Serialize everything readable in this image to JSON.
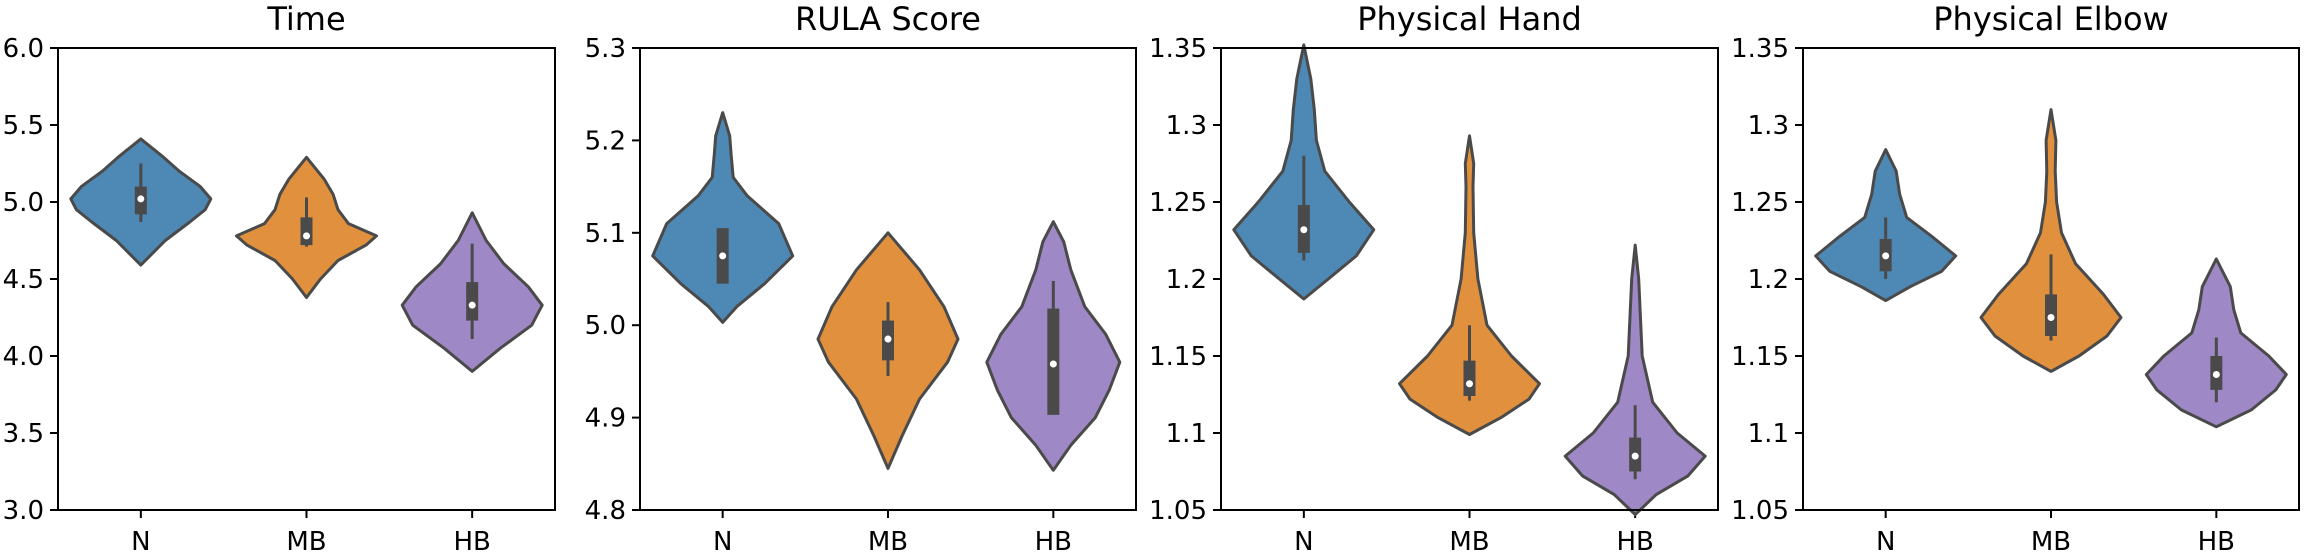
{
  "chart_data": [
    {
      "type": "violin",
      "title": "Time",
      "categories": [
        "N",
        "MB",
        "HB"
      ],
      "ylim": [
        3.0,
        6.0
      ],
      "yticks": [
        3.0,
        3.5,
        4.0,
        4.5,
        5.0,
        5.5,
        6.0
      ],
      "ytick_labels": [
        "3.0",
        "3.5",
        "4.0",
        "4.5",
        "5.0",
        "5.5",
        "6.0"
      ],
      "series": [
        {
          "name": "N",
          "color": "#4e88b4",
          "min": 4.59,
          "max": 5.41,
          "whisker_low": 4.87,
          "whisker_high": 5.25,
          "q1": 4.92,
          "median": 5.02,
          "q3": 5.1,
          "profile": [
            [
              4.59,
              0.0
            ],
            [
              4.75,
              0.35
            ],
            [
              4.87,
              0.7
            ],
            [
              4.95,
              0.92
            ],
            [
              5.02,
              1.0
            ],
            [
              5.1,
              0.85
            ],
            [
              5.2,
              0.55
            ],
            [
              5.3,
              0.3
            ],
            [
              5.41,
              0.0
            ]
          ]
        },
        {
          "name": "MB",
          "color": "#e1913e",
          "min": 4.38,
          "max": 5.29,
          "whisker_low": 4.71,
          "whisker_high": 5.03,
          "q1": 4.72,
          "median": 4.78,
          "q3": 4.9,
          "profile": [
            [
              4.38,
              0.0
            ],
            [
              4.5,
              0.2
            ],
            [
              4.62,
              0.45
            ],
            [
              4.72,
              0.85
            ],
            [
              4.78,
              1.0
            ],
            [
              4.86,
              0.6
            ],
            [
              4.95,
              0.45
            ],
            [
              5.05,
              0.38
            ],
            [
              5.15,
              0.25
            ],
            [
              5.29,
              0.0
            ]
          ]
        },
        {
          "name": "HB",
          "color": "#9e88c5",
          "min": 3.9,
          "max": 4.93,
          "whisker_low": 4.11,
          "whisker_high": 4.73,
          "q1": 4.23,
          "median": 4.33,
          "q3": 4.48,
          "profile": [
            [
              3.9,
              0.0
            ],
            [
              4.05,
              0.4
            ],
            [
              4.2,
              0.85
            ],
            [
              4.33,
              1.0
            ],
            [
              4.45,
              0.8
            ],
            [
              4.6,
              0.45
            ],
            [
              4.75,
              0.2
            ],
            [
              4.93,
              0.0
            ]
          ]
        }
      ]
    },
    {
      "type": "violin",
      "title": "RULA Score",
      "categories": [
        "N",
        "MB",
        "HB"
      ],
      "ylim": [
        4.8,
        5.3
      ],
      "yticks": [
        4.8,
        4.9,
        5.0,
        5.1,
        5.2,
        5.3
      ],
      "ytick_labels": [
        "4.8",
        "4.9",
        "5.0",
        "5.1",
        "5.2",
        "5.3"
      ],
      "series": [
        {
          "name": "N",
          "color": "#4e88b4",
          "min": 5.003,
          "max": 5.23,
          "whisker_low": 5.045,
          "whisker_high": 5.105,
          "q1": 5.045,
          "median": 5.075,
          "q3": 5.105,
          "profile": [
            [
              5.003,
              0.0
            ],
            [
              5.02,
              0.2
            ],
            [
              5.045,
              0.6
            ],
            [
              5.075,
              1.0
            ],
            [
              5.11,
              0.8
            ],
            [
              5.14,
              0.35
            ],
            [
              5.16,
              0.15
            ],
            [
              5.185,
              0.12
            ],
            [
              5.205,
              0.1
            ],
            [
              5.23,
              0.0
            ]
          ]
        },
        {
          "name": "MB",
          "color": "#e1913e",
          "min": 4.845,
          "max": 5.1,
          "whisker_low": 4.945,
          "whisker_high": 5.025,
          "q1": 4.962,
          "median": 4.985,
          "q3": 5.005,
          "profile": [
            [
              4.845,
              0.0
            ],
            [
              4.88,
              0.2
            ],
            [
              4.92,
              0.45
            ],
            [
              4.96,
              0.85
            ],
            [
              4.985,
              1.0
            ],
            [
              5.02,
              0.8
            ],
            [
              5.06,
              0.45
            ],
            [
              5.1,
              0.0
            ]
          ]
        },
        {
          "name": "HB",
          "color": "#9e88c5",
          "min": 4.843,
          "max": 5.112,
          "whisker_low": 4.903,
          "whisker_high": 5.048,
          "q1": 4.903,
          "median": 4.958,
          "q3": 5.018,
          "profile": [
            [
              4.843,
              0.0
            ],
            [
              4.87,
              0.25
            ],
            [
              4.9,
              0.6
            ],
            [
              4.93,
              0.8
            ],
            [
              4.96,
              0.95
            ],
            [
              4.99,
              0.75
            ],
            [
              5.02,
              0.45
            ],
            [
              5.06,
              0.25
            ],
            [
              5.09,
              0.15
            ],
            [
              5.112,
              0.0
            ]
          ]
        }
      ]
    },
    {
      "type": "violin",
      "title": "Physical Hand",
      "categories": [
        "N",
        "MB",
        "HB"
      ],
      "ylim": [
        1.05,
        1.35
      ],
      "yticks": [
        1.05,
        1.1,
        1.15,
        1.2,
        1.25,
        1.3,
        1.35
      ],
      "ytick_labels": [
        "1.05",
        "1.1",
        "1.15",
        "1.2",
        "1.25",
        "1.3",
        "1.35"
      ],
      "series": [
        {
          "name": "N",
          "color": "#4e88b4",
          "min": 1.187,
          "max": 1.352,
          "whisker_low": 1.212,
          "whisker_high": 1.28,
          "q1": 1.217,
          "median": 1.232,
          "q3": 1.248,
          "profile": [
            [
              1.187,
              0.0
            ],
            [
              1.2,
              0.35
            ],
            [
              1.215,
              0.75
            ],
            [
              1.232,
              1.0
            ],
            [
              1.25,
              0.65
            ],
            [
              1.27,
              0.3
            ],
            [
              1.29,
              0.18
            ],
            [
              1.31,
              0.15
            ],
            [
              1.33,
              0.1
            ],
            [
              1.352,
              0.0
            ]
          ]
        },
        {
          "name": "MB",
          "color": "#e1913e",
          "min": 1.099,
          "max": 1.293,
          "whisker_low": 1.121,
          "whisker_high": 1.17,
          "q1": 1.124,
          "median": 1.132,
          "q3": 1.147,
          "profile": [
            [
              1.099,
              0.0
            ],
            [
              1.11,
              0.45
            ],
            [
              1.122,
              0.85
            ],
            [
              1.132,
              1.0
            ],
            [
              1.15,
              0.6
            ],
            [
              1.17,
              0.25
            ],
            [
              1.2,
              0.12
            ],
            [
              1.23,
              0.06
            ],
            [
              1.26,
              0.05
            ],
            [
              1.275,
              0.06
            ],
            [
              1.293,
              0.0
            ]
          ]
        },
        {
          "name": "HB",
          "color": "#9e88c5",
          "min": 1.047,
          "max": 1.222,
          "whisker_low": 1.07,
          "whisker_high": 1.118,
          "q1": 1.075,
          "median": 1.085,
          "q3": 1.097,
          "profile": [
            [
              1.047,
              0.0
            ],
            [
              1.06,
              0.3
            ],
            [
              1.072,
              0.75
            ],
            [
              1.085,
              1.0
            ],
            [
              1.1,
              0.6
            ],
            [
              1.12,
              0.25
            ],
            [
              1.15,
              0.1
            ],
            [
              1.18,
              0.07
            ],
            [
              1.2,
              0.05
            ],
            [
              1.222,
              0.0
            ]
          ]
        }
      ]
    },
    {
      "type": "violin",
      "title": "Physical Elbow",
      "categories": [
        "N",
        "MB",
        "HB"
      ],
      "ylim": [
        1.05,
        1.35
      ],
      "yticks": [
        1.05,
        1.1,
        1.15,
        1.2,
        1.25,
        1.3,
        1.35
      ],
      "ytick_labels": [
        "1.05",
        "1.1",
        "1.15",
        "1.2",
        "1.25",
        "1.3",
        "1.35"
      ],
      "series": [
        {
          "name": "N",
          "color": "#4e88b4",
          "min": 1.186,
          "max": 1.284,
          "whisker_low": 1.2,
          "whisker_high": 1.24,
          "q1": 1.205,
          "median": 1.215,
          "q3": 1.226,
          "profile": [
            [
              1.186,
              0.0
            ],
            [
              1.195,
              0.35
            ],
            [
              1.205,
              0.8
            ],
            [
              1.215,
              1.0
            ],
            [
              1.228,
              0.65
            ],
            [
              1.24,
              0.3
            ],
            [
              1.255,
              0.2
            ],
            [
              1.27,
              0.15
            ],
            [
              1.284,
              0.0
            ]
          ]
        },
        {
          "name": "MB",
          "color": "#e1913e",
          "min": 1.14,
          "max": 1.31,
          "whisker_low": 1.16,
          "whisker_high": 1.216,
          "q1": 1.163,
          "median": 1.175,
          "q3": 1.19,
          "profile": [
            [
              1.14,
              0.0
            ],
            [
              1.15,
              0.4
            ],
            [
              1.163,
              0.8
            ],
            [
              1.175,
              1.0
            ],
            [
              1.19,
              0.75
            ],
            [
              1.21,
              0.35
            ],
            [
              1.23,
              0.15
            ],
            [
              1.25,
              0.08
            ],
            [
              1.27,
              0.06
            ],
            [
              1.29,
              0.07
            ],
            [
              1.31,
              0.0
            ]
          ]
        },
        {
          "name": "HB",
          "color": "#9e88c5",
          "min": 1.104,
          "max": 1.213,
          "whisker_low": 1.12,
          "whisker_high": 1.162,
          "q1": 1.128,
          "median": 1.138,
          "q3": 1.15,
          "profile": [
            [
              1.104,
              0.0
            ],
            [
              1.115,
              0.5
            ],
            [
              1.128,
              0.85
            ],
            [
              1.138,
              1.0
            ],
            [
              1.15,
              0.75
            ],
            [
              1.165,
              0.35
            ],
            [
              1.18,
              0.25
            ],
            [
              1.195,
              0.2
            ],
            [
              1.213,
              0.0
            ]
          ]
        }
      ]
    }
  ]
}
